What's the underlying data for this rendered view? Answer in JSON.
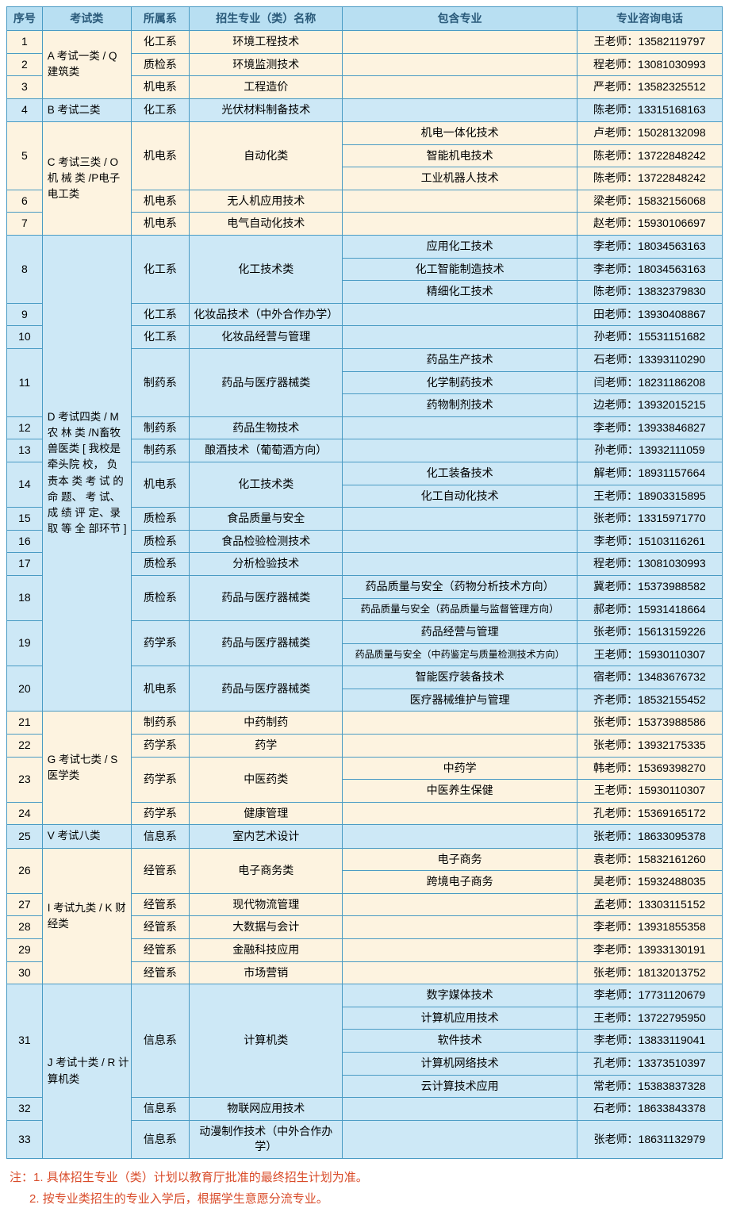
{
  "colors": {
    "border": "#4a9bc4",
    "header_bg": "#b8dff2",
    "header_fg": "#2a5a7a",
    "row_cream": "#fdf3e0",
    "row_blue": "#cde8f6",
    "note_color": "#d94c2a"
  },
  "headers": {
    "seq": "序号",
    "cat": "考试类",
    "dept": "所属系",
    "major": "招生专业（类）名称",
    "included": "包含专业",
    "tel": "专业咨询电话"
  },
  "categories": {
    "A": "A 考试一类 / Q 建筑类",
    "B": "B 考试二类",
    "C": "C 考试三类 / O 机 械 类 /P电子电工类",
    "D": "D 考试四类 / M 农 林 类 /N畜牧兽医类 [ 我校是牵头院 校， 负 责本 类 考 试 的命 题、 考 试、成 绩 评 定、录 取 等 全 部环节 ]",
    "G": "G 考试七类 / S 医学类",
    "V": "V 考试八类",
    "I": "I 考试九类 / K 财经类",
    "J": "J 考试十类 / R 计算机类"
  },
  "rows": [
    {
      "seq": "1",
      "dept": "化工系",
      "major": "环境工程技术",
      "inc": "",
      "tel": "王老师：13582119797",
      "cls": "cream-row"
    },
    {
      "seq": "2",
      "dept": "质检系",
      "major": "环境监测技术",
      "inc": "",
      "tel": "程老师：13081030993",
      "cls": "cream-row"
    },
    {
      "seq": "3",
      "dept": "机电系",
      "major": "工程造价",
      "inc": "",
      "tel": "严老师：13582325512",
      "cls": "cream-row"
    },
    {
      "seq": "4",
      "dept": "化工系",
      "major": "光伏材料制备技术",
      "inc": "",
      "tel": "陈老师：13315168163",
      "cls": "blue-row"
    },
    {
      "seq": "5",
      "dept": "机电系",
      "major": "自动化类",
      "inc": "机电一体化技术",
      "tel": "卢老师：15028132098",
      "cls": "cream-row"
    },
    {
      "seq": "5b",
      "dept": "",
      "major": "",
      "inc": "智能机电技术",
      "tel": "陈老师：13722848242",
      "cls": "cream-row"
    },
    {
      "seq": "5c",
      "dept": "",
      "major": "",
      "inc": "工业机器人技术",
      "tel": "陈老师：13722848242",
      "cls": "cream-row"
    },
    {
      "seq": "6",
      "dept": "机电系",
      "major": "无人机应用技术",
      "inc": "",
      "tel": "梁老师：15832156068",
      "cls": "cream-row"
    },
    {
      "seq": "7",
      "dept": "机电系",
      "major": "电气自动化技术",
      "inc": "",
      "tel": "赵老师：15930106697",
      "cls": "cream-row"
    },
    {
      "seq": "8",
      "dept": "化工系",
      "major": "化工技术类",
      "inc": "应用化工技术",
      "tel": "李老师：18034563163",
      "cls": "blue-row"
    },
    {
      "seq": "8b",
      "dept": "",
      "major": "",
      "inc": "化工智能制造技术",
      "tel": "李老师：18034563163",
      "cls": "blue-row"
    },
    {
      "seq": "8c",
      "dept": "",
      "major": "",
      "inc": "精细化工技术",
      "tel": "陈老师：13832379830",
      "cls": "blue-row"
    },
    {
      "seq": "9",
      "dept": "化工系",
      "major": "化妆品技术（中外合作办学）",
      "inc": "",
      "tel": "田老师：13930408867",
      "cls": "blue-row"
    },
    {
      "seq": "10",
      "dept": "化工系",
      "major": "化妆品经营与管理",
      "inc": "",
      "tel": "孙老师：15531151682",
      "cls": "blue-row"
    },
    {
      "seq": "11",
      "dept": "制药系",
      "major": "药品与医疗器械类",
      "inc": "药品生产技术",
      "tel": "石老师：13393110290",
      "cls": "blue-row"
    },
    {
      "seq": "11b",
      "dept": "",
      "major": "",
      "inc": "化学制药技术",
      "tel": "闫老师：18231186208",
      "cls": "blue-row"
    },
    {
      "seq": "11c",
      "dept": "",
      "major": "",
      "inc": "药物制剂技术",
      "tel": "边老师：13932015215",
      "cls": "blue-row"
    },
    {
      "seq": "12",
      "dept": "制药系",
      "major": "药品生物技术",
      "inc": "",
      "tel": "李老师：13933846827",
      "cls": "blue-row"
    },
    {
      "seq": "13",
      "dept": "制药系",
      "major": "酿酒技术（葡萄酒方向）",
      "inc": "",
      "tel": "孙老师：13932111059",
      "cls": "blue-row"
    },
    {
      "seq": "14",
      "dept": "机电系",
      "major": "化工技术类",
      "inc": "化工装备技术",
      "tel": "解老师：18931157664",
      "cls": "blue-row"
    },
    {
      "seq": "14b",
      "dept": "",
      "major": "",
      "inc": "化工自动化技术",
      "tel": "王老师：18903315895",
      "cls": "blue-row"
    },
    {
      "seq": "15",
      "dept": "质检系",
      "major": "食品质量与安全",
      "inc": "",
      "tel": "张老师：13315971770",
      "cls": "blue-row"
    },
    {
      "seq": "16",
      "dept": "质检系",
      "major": "食品检验检测技术",
      "inc": "",
      "tel": "李老师：15103116261",
      "cls": "blue-row"
    },
    {
      "seq": "17",
      "dept": "质检系",
      "major": "分析检验技术",
      "inc": "",
      "tel": "程老师：13081030993",
      "cls": "blue-row"
    },
    {
      "seq": "18",
      "dept": "质检系",
      "major": "药品与医疗器械类",
      "inc": "药品质量与安全（药物分析技术方向）",
      "tel": "冀老师：15373988582",
      "cls": "blue-row"
    },
    {
      "seq": "18b",
      "dept": "",
      "major": "",
      "inc": "药品质量与安全（药品质量与监督管理方向）",
      "tel": "郝老师：15931418664",
      "cls": "blue-row"
    },
    {
      "seq": "19",
      "dept": "药学系",
      "major": "药品与医疗器械类",
      "inc": "药品经营与管理",
      "tel": "张老师：15613159226",
      "cls": "blue-row"
    },
    {
      "seq": "19b",
      "dept": "",
      "major": "",
      "inc": "药品质量与安全（中药鉴定与质量检测技术方向）",
      "tel": "王老师：15930110307",
      "cls": "blue-row"
    },
    {
      "seq": "20",
      "dept": "机电系",
      "major": "药品与医疗器械类",
      "inc": "智能医疗装备技术",
      "tel": "宿老师：13483676732",
      "cls": "blue-row"
    },
    {
      "seq": "20b",
      "dept": "",
      "major": "",
      "inc": "医疗器械维护与管理",
      "tel": "齐老师：18532155452",
      "cls": "blue-row"
    },
    {
      "seq": "21",
      "dept": "制药系",
      "major": "中药制药",
      "inc": "",
      "tel": "张老师：15373988586",
      "cls": "cream-row"
    },
    {
      "seq": "22",
      "dept": "药学系",
      "major": "药学",
      "inc": "",
      "tel": "张老师：13932175335",
      "cls": "cream-row"
    },
    {
      "seq": "23",
      "dept": "药学系",
      "major": "中医药类",
      "inc": "中药学",
      "tel": "韩老师：15369398270",
      "cls": "cream-row"
    },
    {
      "seq": "23b",
      "dept": "",
      "major": "",
      "inc": "中医养生保健",
      "tel": "王老师：15930110307",
      "cls": "cream-row"
    },
    {
      "seq": "24",
      "dept": "药学系",
      "major": "健康管理",
      "inc": "",
      "tel": "孔老师：15369165172",
      "cls": "cream-row"
    },
    {
      "seq": "25",
      "dept": "信息系",
      "major": "室内艺术设计",
      "inc": "",
      "tel": "张老师：18633095378",
      "cls": "blue-row"
    },
    {
      "seq": "26",
      "dept": "经管系",
      "major": "电子商务类",
      "inc": "电子商务",
      "tel": "袁老师：15832161260",
      "cls": "cream-row"
    },
    {
      "seq": "26b",
      "dept": "",
      "major": "",
      "inc": "跨境电子商务",
      "tel": "吴老师：15932488035",
      "cls": "cream-row"
    },
    {
      "seq": "27",
      "dept": "经管系",
      "major": "现代物流管理",
      "inc": "",
      "tel": "孟老师：13303115152",
      "cls": "cream-row"
    },
    {
      "seq": "28",
      "dept": "经管系",
      "major": "大数据与会计",
      "inc": "",
      "tel": "李老师：13931855358",
      "cls": "cream-row"
    },
    {
      "seq": "29",
      "dept": "经管系",
      "major": "金融科技应用",
      "inc": "",
      "tel": "李老师：13933130191",
      "cls": "cream-row"
    },
    {
      "seq": "30",
      "dept": "经管系",
      "major": "市场营销",
      "inc": "",
      "tel": "张老师：18132013752",
      "cls": "cream-row"
    },
    {
      "seq": "31",
      "dept": "信息系",
      "major": "计算机类",
      "inc": "数字媒体技术",
      "tel": "李老师：17731120679",
      "cls": "blue-row"
    },
    {
      "seq": "31b",
      "dept": "",
      "major": "",
      "inc": "计算机应用技术",
      "tel": "王老师：13722795950",
      "cls": "blue-row"
    },
    {
      "seq": "31c",
      "dept": "",
      "major": "",
      "inc": "软件技术",
      "tel": "李老师：13833119041",
      "cls": "blue-row"
    },
    {
      "seq": "31d",
      "dept": "",
      "major": "",
      "inc": "计算机网络技术",
      "tel": "孔老师：13373510397",
      "cls": "blue-row"
    },
    {
      "seq": "31e",
      "dept": "",
      "major": "",
      "inc": "云计算技术应用",
      "tel": "常老师：15383837328",
      "cls": "blue-row"
    },
    {
      "seq": "32",
      "dept": "信息系",
      "major": "物联网应用技术",
      "inc": "",
      "tel": "石老师：18633843378",
      "cls": "blue-row"
    },
    {
      "seq": "33",
      "dept": "信息系",
      "major": "动漫制作技术（中外合作办学）",
      "inc": "",
      "tel": "张老师：18631132979",
      "cls": "blue-row"
    }
  ],
  "notes": {
    "label": "注：",
    "n1": "1. 具体招生专业（类）计划以教育厅批准的最终招生计划为准。",
    "n2": "2. 按专业类招生的专业入学后，根据学生意愿分流专业。"
  }
}
